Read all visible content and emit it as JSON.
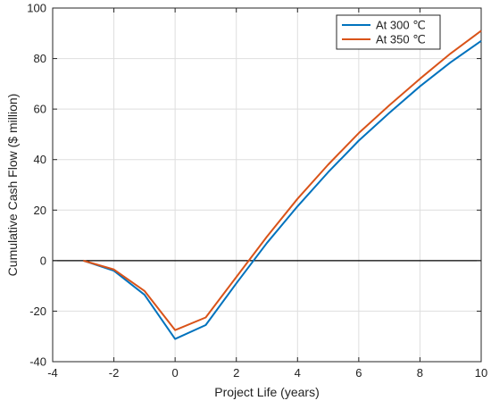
{
  "chart_data": {
    "type": "line",
    "title": "",
    "xlabel": "Project Life (years)",
    "ylabel": "Cumulative Cash Flow ($ million)",
    "xlim": [
      -4,
      10
    ],
    "ylim": [
      -40,
      100
    ],
    "xticks": [
      -4,
      -2,
      0,
      2,
      4,
      6,
      8,
      10
    ],
    "yticks": [
      -40,
      -20,
      0,
      20,
      40,
      60,
      80,
      100
    ],
    "x_tick_labels": [
      "-4",
      "-2",
      "0",
      "2",
      "4",
      "6",
      "8",
      "10"
    ],
    "y_tick_labels": [
      "-40",
      "-20",
      "0",
      "20",
      "40",
      "60",
      "80",
      "100"
    ],
    "grid": true,
    "legend_position": "top-right",
    "zero_line": true,
    "x": [
      -3,
      -2,
      -1,
      0,
      1,
      2,
      3,
      4,
      5,
      6,
      7,
      8,
      9,
      10
    ],
    "series": [
      {
        "name": "At 300 ℃",
        "color": "#0072BD",
        "values": [
          0,
          -4,
          -13.5,
          -31,
          -25.5,
          -9,
          7,
          21.5,
          35,
          47.5,
          58.5,
          69,
          78.5,
          87
        ]
      },
      {
        "name": "At 350 ℃",
        "color": "#D95319",
        "values": [
          0,
          -3.5,
          -12,
          -27.5,
          -22.5,
          -6.5,
          9.5,
          24.5,
          38,
          50.5,
          61.5,
          72,
          82,
          91
        ]
      }
    ]
  }
}
